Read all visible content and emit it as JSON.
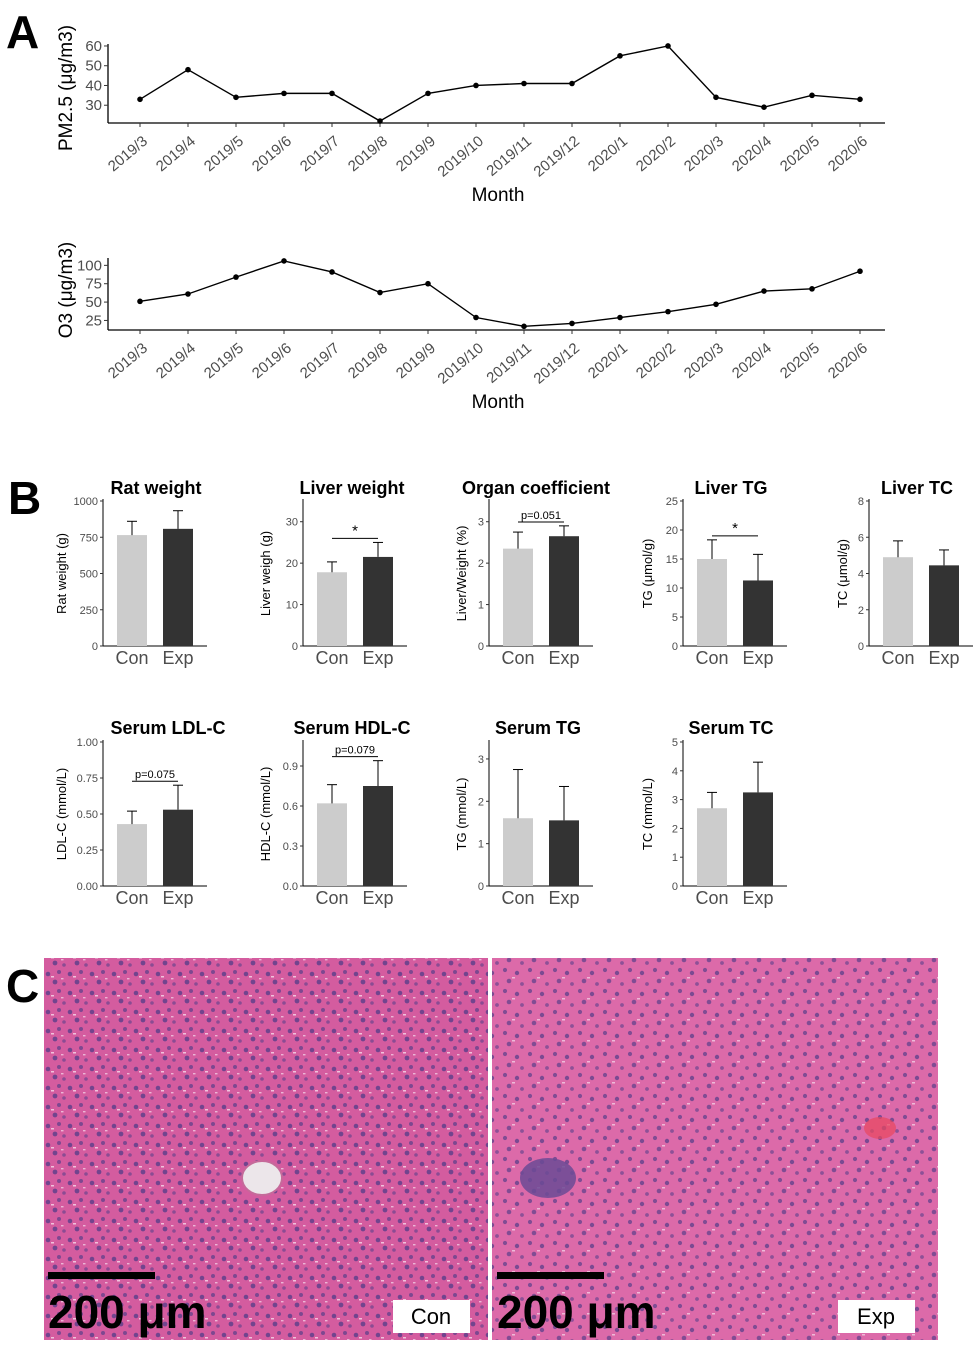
{
  "panels": {
    "a": "A",
    "b": "B",
    "c": "C"
  },
  "chart_data": [
    {
      "id": "pm25",
      "type": "line",
      "x": [
        "2019/3",
        "2019/4",
        "2019/5",
        "2019/6",
        "2019/7",
        "2019/8",
        "2019/9",
        "2019/10",
        "2019/11",
        "2019/12",
        "2020/1",
        "2020/2",
        "2020/3",
        "2020/4",
        "2020/5",
        "2020/6"
      ],
      "values": [
        33,
        48,
        34,
        36,
        36,
        22,
        36,
        40,
        41,
        41,
        55,
        60,
        34,
        29,
        35,
        33
      ],
      "xlabel": "Month",
      "ylabel": "PM2.5 (μg/m3)",
      "yticks": [
        30,
        40,
        50,
        60
      ],
      "ylim": [
        21,
        61
      ]
    },
    {
      "id": "o3",
      "type": "line",
      "x": [
        "2019/3",
        "2019/4",
        "2019/5",
        "2019/6",
        "2019/7",
        "2019/8",
        "2019/9",
        "2019/10",
        "2019/11",
        "2019/12",
        "2020/1",
        "2020/2",
        "2020/3",
        "2020/4",
        "2020/5",
        "2020/6"
      ],
      "values": [
        51,
        61,
        84,
        106,
        91,
        63,
        75,
        29,
        17,
        21,
        29,
        37,
        47,
        65,
        68,
        92
      ],
      "xlabel": "Month",
      "ylabel": "O3 (μg/m3)",
      "yticks": [
        25,
        50,
        75,
        100
      ],
      "ylim": [
        12,
        110
      ]
    },
    {
      "id": "rat-weight",
      "type": "bar",
      "title": "Rat weight",
      "ylabel": "Rat weight (g)",
      "categories": [
        "Con",
        "Exp"
      ],
      "values": [
        765,
        808
      ],
      "errors": [
        95,
        125
      ],
      "ylim": [
        0,
        1000
      ],
      "yticks": [
        "0",
        "250",
        "500",
        "750",
        "1000"
      ],
      "sig": ""
    },
    {
      "id": "liver-weight",
      "type": "bar",
      "title": "Liver weight",
      "ylabel": "Liver weigh (g)",
      "categories": [
        "Con",
        "Exp"
      ],
      "values": [
        17.8,
        21.5
      ],
      "errors": [
        2.5,
        3.5
      ],
      "ylim": [
        0,
        35
      ],
      "yticks": [
        "0",
        "10",
        "20",
        "30"
      ],
      "sig": "*"
    },
    {
      "id": "organ-coefficient",
      "type": "bar",
      "title": "Organ coefficient",
      "ylabel": "Liver/Weight (%)",
      "categories": [
        "Con",
        "Exp"
      ],
      "values": [
        2.35,
        2.65
      ],
      "errors": [
        0.4,
        0.25
      ],
      "ylim": [
        0,
        3.5
      ],
      "yticks": [
        "0",
        "1",
        "2",
        "3"
      ],
      "sig": "p=0.051"
    },
    {
      "id": "liver-tg",
      "type": "bar",
      "title": "Liver TG",
      "ylabel": "TG (μmol/g)",
      "categories": [
        "Con",
        "Exp"
      ],
      "values": [
        15.0,
        11.3
      ],
      "errors": [
        3.3,
        4.5
      ],
      "ylim": [
        0,
        25
      ],
      "yticks": [
        "0",
        "5",
        "10",
        "15",
        "20",
        "25"
      ],
      "sig": "*"
    },
    {
      "id": "liver-tc",
      "type": "bar",
      "title": "Liver TC",
      "ylabel": "TC (μmol/g)",
      "categories": [
        "Con",
        "Exp"
      ],
      "values": [
        4.9,
        4.45
      ],
      "errors": [
        0.9,
        0.85
      ],
      "ylim": [
        0,
        8
      ],
      "yticks": [
        "0",
        "2",
        "4",
        "6",
        "8"
      ],
      "sig": ""
    },
    {
      "id": "serum-ldl",
      "type": "bar",
      "title": "Serum LDL-C",
      "ylabel": "LDL-C (mmol/L)",
      "categories": [
        "Con",
        "Exp"
      ],
      "values": [
        0.43,
        0.53
      ],
      "errors": [
        0.09,
        0.17
      ],
      "ylim": [
        0,
        1.0
      ],
      "yticks": [
        "0.00",
        "0.25",
        "0.50",
        "0.75",
        "1.00"
      ],
      "sig": "p=0.075"
    },
    {
      "id": "serum-hdl",
      "type": "bar",
      "title": "Serum HDL-C",
      "ylabel": "HDL-C (mmol/L)",
      "categories": [
        "Con",
        "Exp"
      ],
      "values": [
        0.62,
        0.75
      ],
      "errors": [
        0.14,
        0.19
      ],
      "ylim": [
        0,
        1.08
      ],
      "yticks": [
        "0.0",
        "0.3",
        "0.6",
        "0.9"
      ],
      "sig": "p=0.079"
    },
    {
      "id": "serum-tg",
      "type": "bar",
      "title": "Serum TG",
      "ylabel": "TG (mmol/L)",
      "categories": [
        "Con",
        "Exp"
      ],
      "values": [
        1.6,
        1.55
      ],
      "errors": [
        1.15,
        0.8
      ],
      "ylim": [
        0,
        3.4
      ],
      "yticks": [
        "0",
        "1",
        "2",
        "3"
      ],
      "sig": ""
    },
    {
      "id": "serum-tc",
      "type": "bar",
      "title": "Serum TC",
      "ylabel": "TC (mmol/L)",
      "categories": [
        "Con",
        "Exp"
      ],
      "values": [
        2.7,
        3.25
      ],
      "errors": [
        0.55,
        1.05
      ],
      "ylim": [
        0,
        5
      ],
      "yticks": [
        "0",
        "1",
        "2",
        "3",
        "4",
        "5"
      ],
      "sig": ""
    }
  ],
  "colors": {
    "con_bar": "#cccccc",
    "exp_bar": "#333333",
    "line": "#000000",
    "tissue_base": "#d45c9f",
    "tissue_light": "#e98bc0",
    "nuclei": "#5a3f8a"
  },
  "micrographs": [
    {
      "label": "Con",
      "scale": "200 μm"
    },
    {
      "label": "Exp",
      "scale": "200 μm"
    }
  ]
}
